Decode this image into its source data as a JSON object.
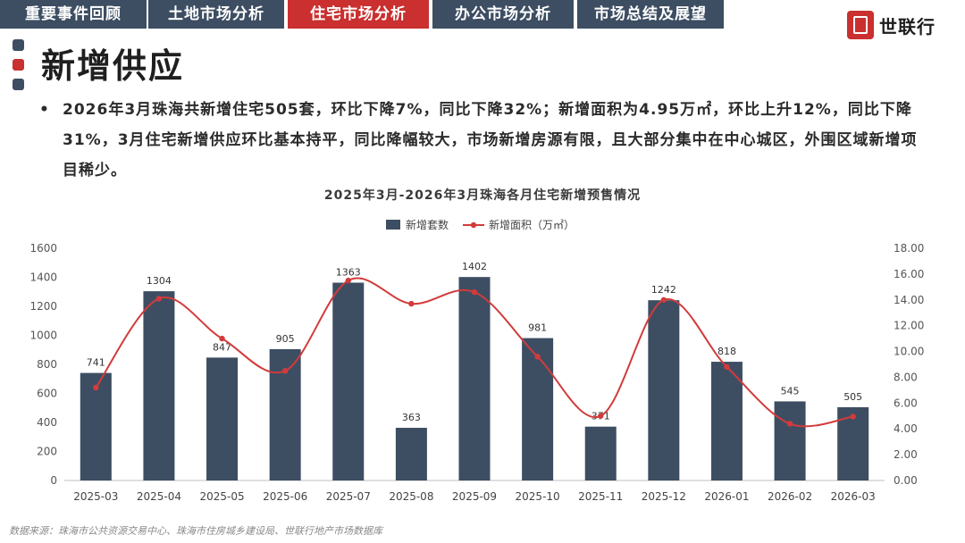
{
  "nav": {
    "tabs": [
      {
        "label": "重要事件回顾"
      },
      {
        "label": "土地市场分析"
      },
      {
        "label": "住宅市场分析"
      },
      {
        "label": "办公市场分析"
      },
      {
        "label": "市场总结及展望"
      }
    ],
    "active_index": 2
  },
  "brand": {
    "name": "世联行"
  },
  "section_title": "新增供应",
  "summary": "2026年3月珠海共新增住宅505套，环比下降7%，同比下降32%；新增面积为4.95万㎡，环比上升12%，同比下降31%，3月住宅新增供应环比基本持平，同比降幅较大，市场新增房源有限，且大部分集中在中心城区，外围区域新增项目稀少。",
  "source_note": "数据来源：珠海市公共资源交易中心、珠海市住房城乡建设局、世联行地产市场数据库",
  "colors": {
    "bar": "#3d4e63",
    "line": "#d23b3b",
    "accent": "#c9302f"
  },
  "chart_data": {
    "type": "bar+line",
    "title": "2025年3月-2026年3月珠海各月住宅新增预售情况",
    "categories": [
      "2025-03",
      "2025-04",
      "2025-05",
      "2025-06",
      "2025-07",
      "2025-08",
      "2025-09",
      "2025-10",
      "2025-11",
      "2025-12",
      "2026-01",
      "2026-02",
      "2026-03"
    ],
    "series": [
      {
        "name": "新增套数",
        "type": "bar",
        "axis": "left",
        "values": [
          741,
          1304,
          847,
          905,
          1363,
          363,
          1402,
          981,
          371,
          1242,
          818,
          545,
          505
        ]
      },
      {
        "name": "新增面积（万㎡）",
        "type": "line",
        "axis": "right",
        "values": [
          7.2,
          14.1,
          11.0,
          8.5,
          15.5,
          13.7,
          14.6,
          9.6,
          5.0,
          14.0,
          8.8,
          4.4,
          4.95
        ]
      }
    ],
    "y_left": {
      "min": 0,
      "max": 1600,
      "ticks": [
        "0",
        "200",
        "400",
        "600",
        "800",
        "1000",
        "1200",
        "1400",
        "1600"
      ]
    },
    "y_right": {
      "min": 0,
      "max": 18,
      "ticks": [
        "0.00",
        "2.00",
        "4.00",
        "6.00",
        "8.00",
        "10.00",
        "12.00",
        "14.00",
        "16.00",
        "18.00"
      ]
    },
    "legend": {
      "position": "top-center"
    },
    "grid": false
  }
}
